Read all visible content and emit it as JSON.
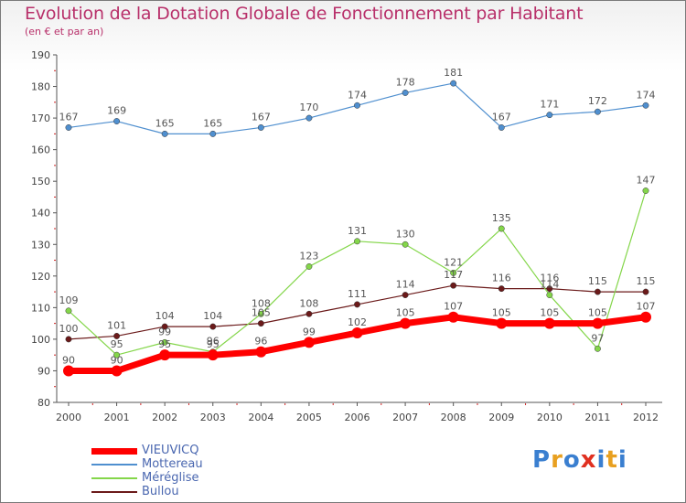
{
  "chart_data": {
    "type": "line",
    "title": "Evolution de la Dotation Globale de Fonctionnement par Habitant",
    "subtitle": "(en € et par an)",
    "x": [
      "2000",
      "2001",
      "2002",
      "2003",
      "2004",
      "2005",
      "2006",
      "2007",
      "2008",
      "2009",
      "2010",
      "2011",
      "2012"
    ],
    "ylim": [
      80,
      190
    ],
    "yticks": [
      80,
      90,
      100,
      110,
      120,
      130,
      140,
      150,
      160,
      170,
      180,
      190
    ],
    "grid": false,
    "legend_position": "bottom-left",
    "series": [
      {
        "name": "VIEUVICQ",
        "color": "#ff0000",
        "values": [
          90,
          90,
          95,
          95,
          96,
          99,
          102,
          105,
          107,
          105,
          105,
          105,
          107
        ]
      },
      {
        "name": "Mottereau",
        "color": "#4f8fcf",
        "values": [
          167,
          169,
          165,
          165,
          167,
          170,
          174,
          178,
          181,
          167,
          171,
          172,
          174
        ]
      },
      {
        "name": "Méréglise",
        "color": "#84d64a",
        "values": [
          109,
          95,
          99,
          96,
          108,
          123,
          131,
          130,
          121,
          135,
          114,
          97,
          147
        ]
      },
      {
        "name": "Bullou",
        "color": "#6b1a1a",
        "values": [
          100,
          101,
          104,
          104,
          105,
          108,
          111,
          114,
          117,
          116,
          116,
          115,
          115
        ]
      }
    ]
  },
  "logo": {
    "text": "Proxiti",
    "letter_colors": [
      "#3a7fd0",
      "#e8a020",
      "#3a7fd0",
      "#e03020",
      "#3a7fd0",
      "#e8a020",
      "#3a7fd0"
    ]
  }
}
